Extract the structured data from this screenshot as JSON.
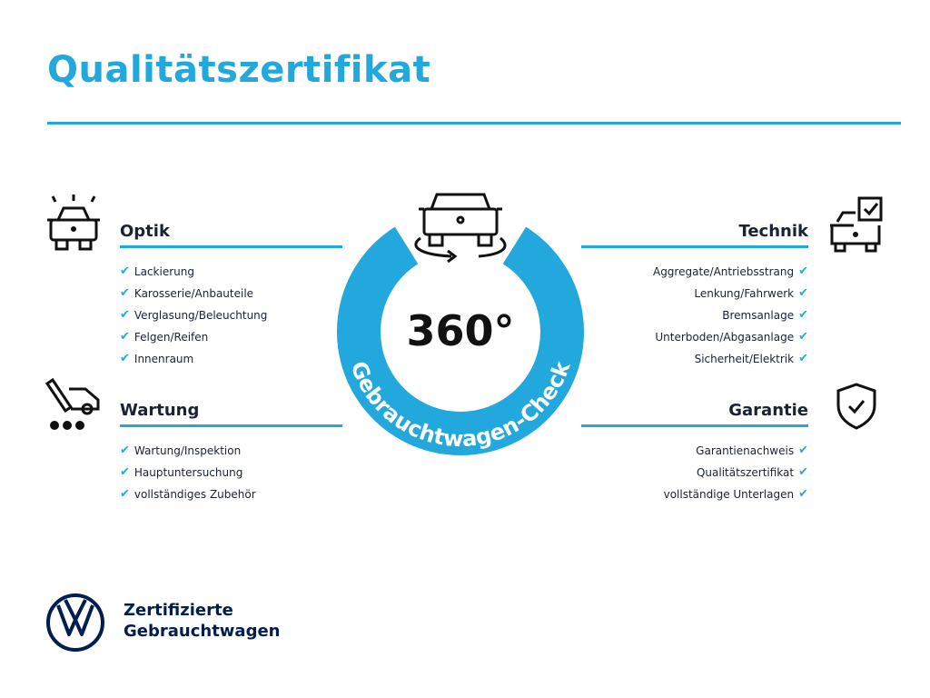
{
  "title": "Qualitätszertifikat",
  "center": {
    "number": "360°",
    "ring_text": "Gebrauchtwagen-Check"
  },
  "colors": {
    "accent": "#22a8dc",
    "text": "#1a2233",
    "brand": "#001e50"
  },
  "sections": {
    "optik": {
      "title": "Optik",
      "icon": "car-lights-icon",
      "items": [
        "Lackierung",
        "Karosserie/Anbauteile",
        "Verglasung/Beleuchtung",
        "Felgen/Reifen",
        "Innenraum"
      ]
    },
    "wartung": {
      "title": "Wartung",
      "icon": "service-van-icon",
      "items": [
        "Wartung/Inspektion",
        "Hauptuntersuchung",
        "vollständiges Zubehör"
      ]
    },
    "technik": {
      "title": "Technik",
      "icon": "car-checklist-icon",
      "items": [
        "Aggregate/Antriebsstrang",
        "Lenkung/Fahrwerk",
        "Bremsanlage",
        "Unterboden/Abgasanlage",
        "Sicherheit/Elektrik"
      ]
    },
    "garantie": {
      "title": "Garantie",
      "icon": "shield-check-icon",
      "items": [
        "Garantienachweis",
        "Qualitätszertifikat",
        "vollständige Unterlagen"
      ]
    }
  },
  "footer": {
    "line1": "Zertifizierte",
    "line2": "Gebrauchtwagen",
    "logo": "VW"
  }
}
